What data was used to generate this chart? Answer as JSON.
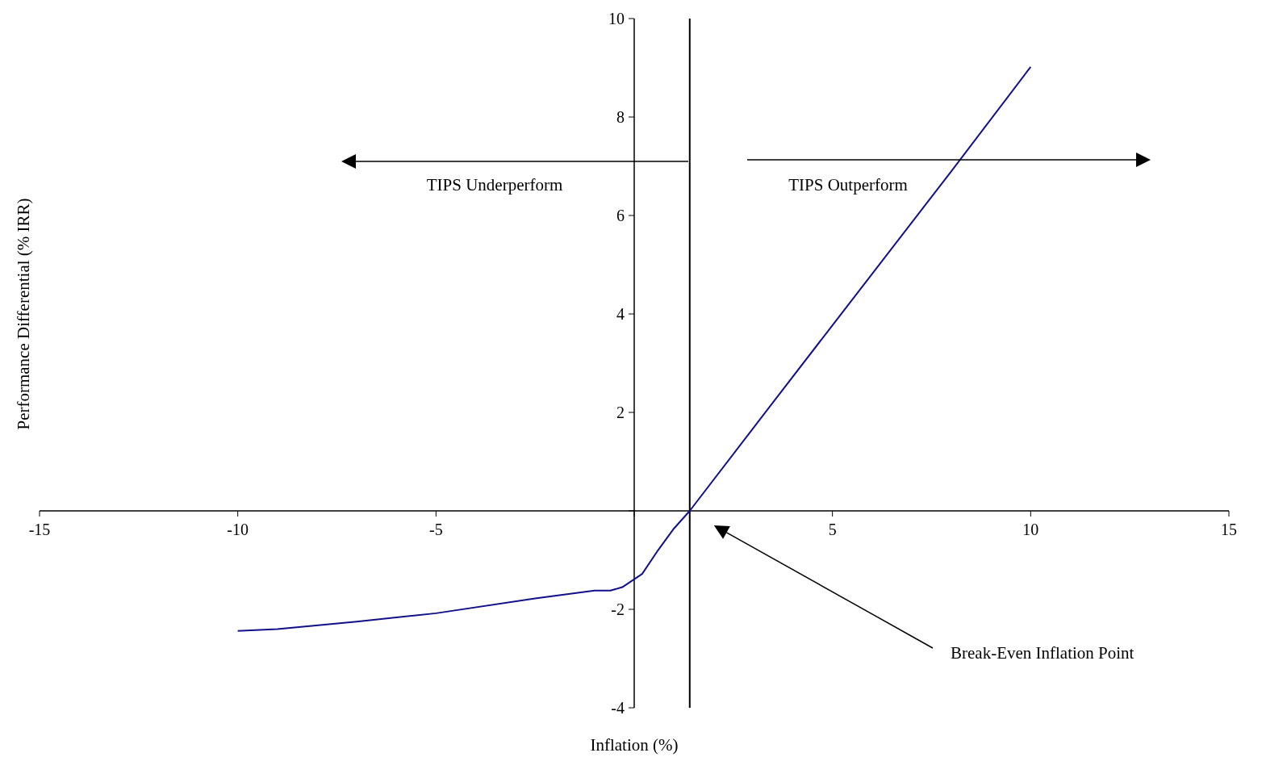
{
  "chart_data": {
    "type": "line",
    "xlabel": "Inflation (%)",
    "ylabel": "Performance Differential (% IRR)",
    "x": [
      -10,
      -9,
      -7,
      -5,
      -2.5,
      -1,
      -0.6,
      -0.3,
      0.2,
      0.6,
      1,
      1.4,
      3,
      5,
      8,
      10
    ],
    "series": [
      {
        "color": "#10108a",
        "values": [
          -2.44,
          -2.4,
          -2.25,
          -2.08,
          -1.78,
          -1.62,
          -1.62,
          -1.55,
          -1.28,
          -0.8,
          -0.36,
          0,
          1.68,
          3.77,
          6.9,
          9.02
        ]
      }
    ],
    "xlim": [
      -15,
      15
    ],
    "xticks": [
      -15,
      -10,
      -5,
      {
        "value": 0,
        "label": null
      },
      5,
      10,
      15
    ],
    "ylim": [
      -4,
      10
    ],
    "yticks": [
      -4,
      -2,
      {
        "value": 0,
        "label": null
      },
      2,
      4,
      6,
      8,
      10
    ],
    "ref_lines": [
      {
        "axis": "x",
        "value": 1.4,
        "color": "#000000"
      }
    ],
    "annotations": [
      "TIPS Underperform",
      "TIPS Outperform",
      "Break-Even Inflation Point"
    ],
    "grid": false,
    "legend": false,
    "marker": "none",
    "line_style": "solid"
  }
}
